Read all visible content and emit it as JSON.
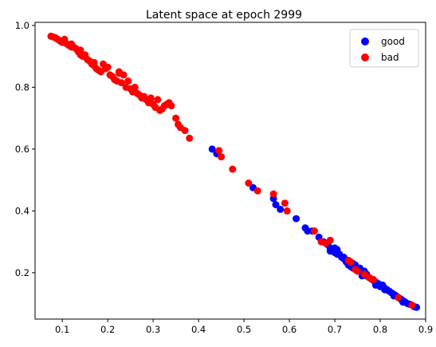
{
  "chart_data": {
    "type": "scatter",
    "title": "Latent space at epoch 2999",
    "xlabel": "",
    "ylabel": "",
    "xlim": [
      0.04,
      0.9
    ],
    "ylim": [
      0.05,
      1.01
    ],
    "xticks": [
      0.1,
      0.2,
      0.3,
      0.4,
      0.5,
      0.6,
      0.7,
      0.8,
      0.9
    ],
    "xtick_labels": [
      "0.1",
      "0.2",
      "0.3",
      "0.4",
      "0.5",
      "0.6",
      "0.7",
      "0.8",
      "0.9"
    ],
    "yticks": [
      0.2,
      0.4,
      0.6,
      0.8,
      1.0
    ],
    "ytick_labels": [
      "0.2",
      "0.4",
      "0.6",
      "0.8",
      "1.0"
    ],
    "grid": false,
    "legend_position": "top-right",
    "series": [
      {
        "name": "good",
        "color": "#0000ff",
        "points": [
          [
            0.43,
            0.6
          ],
          [
            0.44,
            0.585
          ],
          [
            0.52,
            0.475
          ],
          [
            0.565,
            0.44
          ],
          [
            0.57,
            0.42
          ],
          [
            0.58,
            0.405
          ],
          [
            0.615,
            0.375
          ],
          [
            0.635,
            0.345
          ],
          [
            0.64,
            0.335
          ],
          [
            0.65,
            0.335
          ],
          [
            0.665,
            0.315
          ],
          [
            0.675,
            0.3
          ],
          [
            0.685,
            0.29
          ],
          [
            0.69,
            0.28
          ],
          [
            0.695,
            0.27
          ],
          [
            0.7,
            0.265
          ],
          [
            0.705,
            0.275
          ],
          [
            0.71,
            0.26
          ],
          [
            0.715,
            0.25
          ],
          [
            0.72,
            0.245
          ],
          [
            0.725,
            0.235
          ],
          [
            0.73,
            0.225
          ],
          [
            0.735,
            0.22
          ],
          [
            0.74,
            0.215
          ],
          [
            0.745,
            0.225
          ],
          [
            0.75,
            0.21
          ],
          [
            0.755,
            0.205
          ],
          [
            0.76,
            0.2
          ],
          [
            0.765,
            0.205
          ],
          [
            0.77,
            0.19
          ],
          [
            0.775,
            0.185
          ],
          [
            0.78,
            0.18
          ],
          [
            0.785,
            0.175
          ],
          [
            0.79,
            0.17
          ],
          [
            0.795,
            0.165
          ],
          [
            0.8,
            0.155
          ],
          [
            0.805,
            0.16
          ],
          [
            0.81,
            0.15
          ],
          [
            0.815,
            0.145
          ],
          [
            0.82,
            0.14
          ],
          [
            0.825,
            0.135
          ],
          [
            0.83,
            0.13
          ],
          [
            0.835,
            0.125
          ],
          [
            0.84,
            0.12
          ],
          [
            0.845,
            0.115
          ],
          [
            0.85,
            0.11
          ],
          [
            0.855,
            0.105
          ],
          [
            0.86,
            0.1
          ],
          [
            0.865,
            0.098
          ],
          [
            0.87,
            0.095
          ],
          [
            0.875,
            0.09
          ],
          [
            0.88,
            0.088
          ],
          [
            0.74,
            0.23
          ],
          [
            0.755,
            0.215
          ],
          [
            0.79,
            0.16
          ],
          [
            0.81,
            0.145
          ],
          [
            0.83,
            0.125
          ],
          [
            0.72,
            0.25
          ],
          [
            0.705,
            0.26
          ],
          [
            0.69,
            0.27
          ],
          [
            0.77,
            0.195
          ],
          [
            0.85,
            0.105
          ],
          [
            0.76,
            0.19
          ],
          [
            0.73,
            0.24
          ],
          [
            0.7,
            0.28
          ]
        ]
      },
      {
        "name": "bad",
        "color": "#ff0000",
        "points": [
          [
            0.075,
            0.965
          ],
          [
            0.08,
            0.963
          ],
          [
            0.085,
            0.96
          ],
          [
            0.09,
            0.955
          ],
          [
            0.095,
            0.95
          ],
          [
            0.1,
            0.945
          ],
          [
            0.105,
            0.955
          ],
          [
            0.11,
            0.94
          ],
          [
            0.115,
            0.935
          ],
          [
            0.12,
            0.94
          ],
          [
            0.125,
            0.93
          ],
          [
            0.13,
            0.925
          ],
          [
            0.135,
            0.915
          ],
          [
            0.14,
            0.905
          ],
          [
            0.145,
            0.9
          ],
          [
            0.15,
            0.905
          ],
          [
            0.155,
            0.89
          ],
          [
            0.16,
            0.885
          ],
          [
            0.165,
            0.875
          ],
          [
            0.17,
            0.87
          ],
          [
            0.175,
            0.86
          ],
          [
            0.18,
            0.855
          ],
          [
            0.185,
            0.85
          ],
          [
            0.19,
            0.875
          ],
          [
            0.195,
            0.86
          ],
          [
            0.2,
            0.865
          ],
          [
            0.205,
            0.84
          ],
          [
            0.21,
            0.835
          ],
          [
            0.215,
            0.825
          ],
          [
            0.22,
            0.82
          ],
          [
            0.225,
            0.85
          ],
          [
            0.23,
            0.815
          ],
          [
            0.235,
            0.84
          ],
          [
            0.24,
            0.8
          ],
          [
            0.245,
            0.82
          ],
          [
            0.25,
            0.795
          ],
          [
            0.255,
            0.785
          ],
          [
            0.26,
            0.8
          ],
          [
            0.265,
            0.78
          ],
          [
            0.27,
            0.775
          ],
          [
            0.275,
            0.765
          ],
          [
            0.28,
            0.77
          ],
          [
            0.285,
            0.76
          ],
          [
            0.29,
            0.75
          ],
          [
            0.295,
            0.765
          ],
          [
            0.3,
            0.745
          ],
          [
            0.305,
            0.735
          ],
          [
            0.31,
            0.76
          ],
          [
            0.315,
            0.725
          ],
          [
            0.32,
            0.73
          ],
          [
            0.325,
            0.74
          ],
          [
            0.33,
            0.745
          ],
          [
            0.335,
            0.75
          ],
          [
            0.34,
            0.74
          ],
          [
            0.35,
            0.7
          ],
          [
            0.355,
            0.68
          ],
          [
            0.36,
            0.67
          ],
          [
            0.37,
            0.66
          ],
          [
            0.38,
            0.635
          ],
          [
            0.12,
            0.93
          ],
          [
            0.17,
            0.88
          ],
          [
            0.445,
            0.595
          ],
          [
            0.45,
            0.575
          ],
          [
            0.475,
            0.535
          ],
          [
            0.51,
            0.49
          ],
          [
            0.53,
            0.465
          ],
          [
            0.565,
            0.455
          ],
          [
            0.59,
            0.425
          ],
          [
            0.595,
            0.4
          ],
          [
            0.655,
            0.335
          ],
          [
            0.67,
            0.3
          ],
          [
            0.68,
            0.295
          ],
          [
            0.69,
            0.305
          ],
          [
            0.73,
            0.24
          ],
          [
            0.735,
            0.235
          ],
          [
            0.745,
            0.21
          ],
          [
            0.75,
            0.205
          ],
          [
            0.765,
            0.195
          ],
          [
            0.775,
            0.185
          ],
          [
            0.78,
            0.18
          ],
          [
            0.785,
            0.178
          ],
          [
            0.84,
            0.12
          ],
          [
            0.87,
            0.095
          ],
          [
            0.225,
            0.845
          ],
          [
            0.14,
            0.92
          ]
        ]
      }
    ]
  }
}
